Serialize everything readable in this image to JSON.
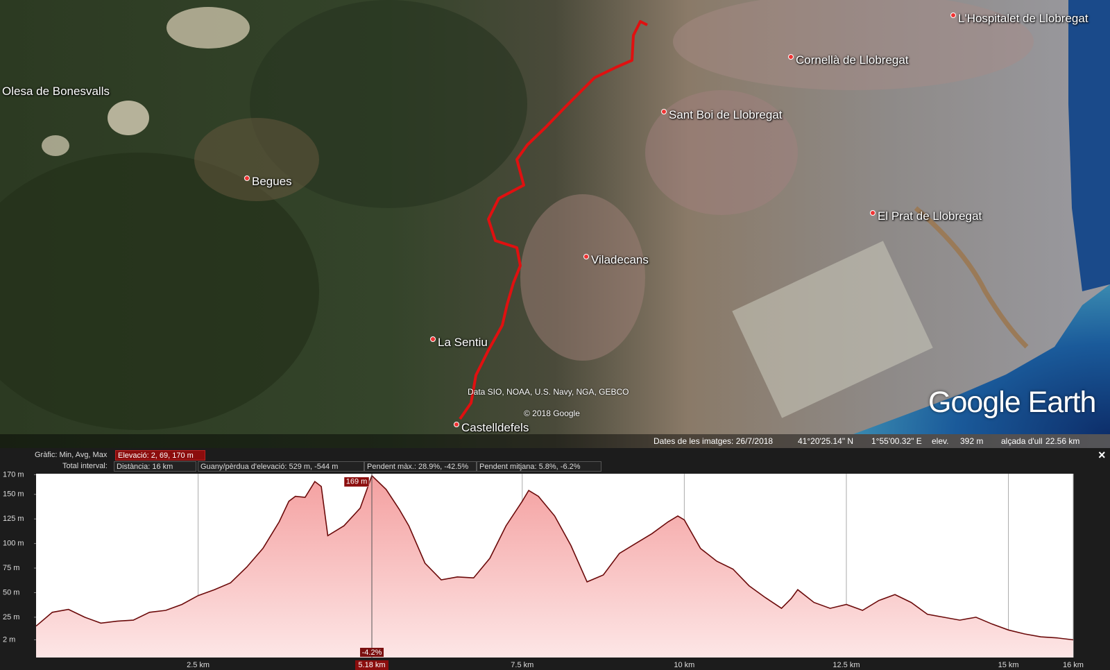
{
  "map": {
    "places": [
      "Olesa de Bonesvalls",
      "Begues",
      "Cornellà de Llobregat",
      "L'Hospitalet de Llobregat",
      "Sant Boi de Llobregat",
      "Viladecans",
      "El Prat de Llobregat",
      "La Sentiu",
      "Castelldefels"
    ],
    "credits": [
      "Data SIO, NOAA, U.S. Navy, NGA, GEBCO",
      "© 2018 Google"
    ],
    "logo": "Google Earth"
  },
  "status_bar": {
    "imagery_date": "Dates de les imatges: 26/7/2018",
    "latitude": "41°20'25.14\" N",
    "longitude": "1°55'00.32\" E",
    "elevation_label": "elev.",
    "elevation": "392 m",
    "eye_altitude_label": "alçada d'ull",
    "eye_altitude": "22.56 km"
  },
  "profile_header": {
    "graph_label": "Gràfic: Min, Avg, Max",
    "elevation_stats": "Elevació: 2, 69, 170 m",
    "range_label": "Total interval:",
    "distance": "Distància: 16 km",
    "gain_loss": "Guany/pèrdua d'elevació: 529 m, -544 m",
    "max_slope": "Pendent màx.: 28.9%, -42.5%",
    "avg_slope": "Pendent mitjana: 5.8%, -6.2%",
    "close": "×"
  },
  "elevation_profile": {
    "type": "area",
    "color": "#6b0a0a",
    "x": [
      0,
      0.25,
      0.5,
      0.75,
      1.0,
      1.25,
      1.5,
      1.75,
      2.0,
      2.25,
      2.5,
      2.75,
      3.0,
      3.25,
      3.5,
      3.75,
      3.9,
      4.0,
      4.15,
      4.3,
      4.4,
      4.5,
      4.75,
      5.0,
      5.18,
      5.4,
      5.6,
      5.75,
      6.0,
      6.25,
      6.5,
      6.75,
      7.0,
      7.25,
      7.5,
      7.6,
      7.75,
      8.0,
      8.25,
      8.5,
      8.75,
      9.0,
      9.25,
      9.5,
      9.75,
      9.9,
      10.0,
      10.25,
      10.5,
      10.75,
      11.0,
      11.25,
      11.5,
      11.65,
      11.75,
      12.0,
      12.25,
      12.5,
      12.75,
      13.0,
      13.25,
      13.5,
      13.75,
      14.0,
      14.25,
      14.5,
      14.75,
      15.0,
      15.25,
      15.5,
      15.75,
      16.0
    ],
    "values": [
      16,
      30,
      33,
      25,
      19,
      21,
      22,
      30,
      32,
      38,
      47,
      53,
      60,
      76,
      95,
      122,
      143,
      148,
      147,
      163,
      158,
      108,
      118,
      136,
      169,
      155,
      135,
      118,
      80,
      63,
      66,
      65,
      85,
      118,
      143,
      154,
      148,
      128,
      98,
      61,
      68,
      90,
      100,
      110,
      122,
      128,
      124,
      95,
      82,
      74,
      57,
      45,
      34,
      44,
      53,
      40,
      34,
      38,
      32,
      42,
      48,
      40,
      28,
      25,
      22,
      25,
      18,
      12,
      8,
      5,
      4,
      2
    ],
    "xlim": [
      0,
      16
    ],
    "ylim": [
      -16,
      171
    ],
    "xticks": [
      {
        "value": 2.5,
        "label": "2.5 km"
      },
      {
        "value": 7.5,
        "label": "7.5 km"
      },
      {
        "value": 10,
        "label": "10 km"
      },
      {
        "value": 12.5,
        "label": "12.5 km"
      },
      {
        "value": 15,
        "label": "15 km"
      },
      {
        "value": 16,
        "label": "16 km"
      }
    ],
    "yticks": [
      {
        "value": 2,
        "label": "2 m"
      },
      {
        "value": 25,
        "label": "25 m"
      },
      {
        "value": 50,
        "label": "50 m"
      },
      {
        "value": 75,
        "label": "75 m"
      },
      {
        "value": 100,
        "label": "100 m"
      },
      {
        "value": 125,
        "label": "125 m"
      },
      {
        "value": 150,
        "label": "150 m"
      },
      {
        "value": 170,
        "label": "170 m"
      }
    ],
    "grid": true,
    "cursor": {
      "x": {
        "value": 5.18,
        "label": "5.18 km"
      },
      "elevation": {
        "value": 169,
        "label": "169 m"
      },
      "slope": "-4.2%"
    }
  }
}
